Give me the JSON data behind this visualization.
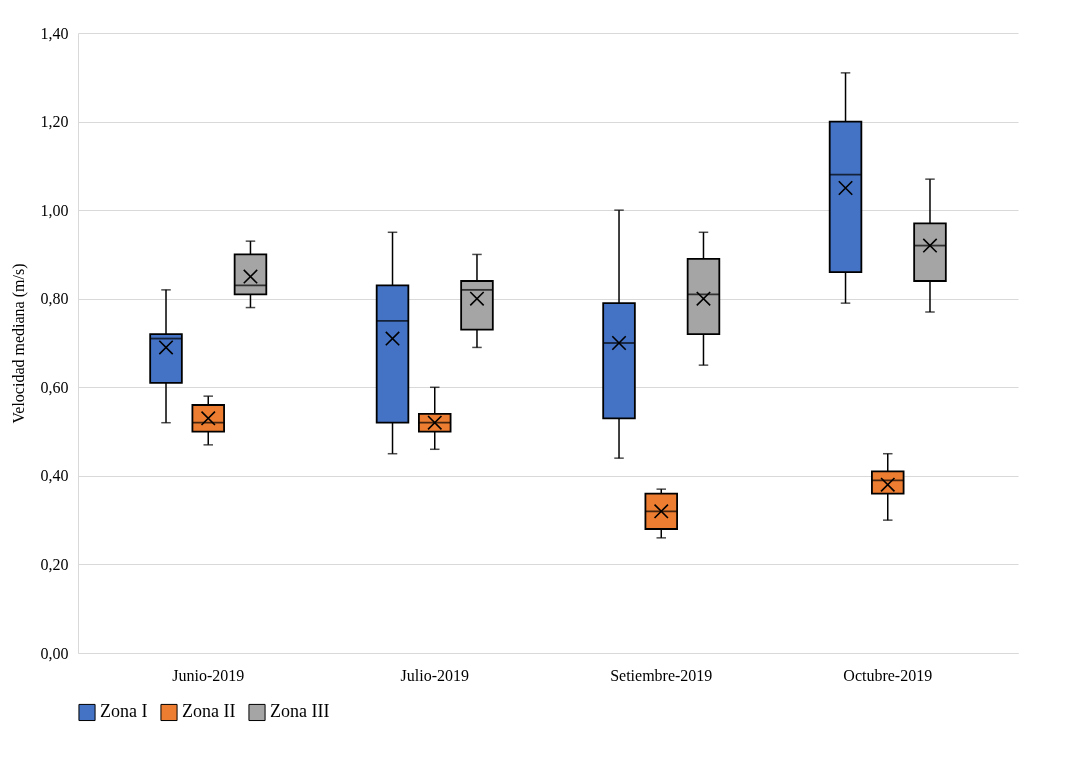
{
  "chart_data": {
    "type": "box",
    "ylabel": "Velocidad mediana (m/s)",
    "categories": [
      "Junio-2019",
      "Julio-2019",
      "Setiembre-2019",
      "Octubre-2019"
    ],
    "ylim": [
      0,
      1.4
    ],
    "yticks": [
      {
        "value": 0,
        "label": "0,00"
      },
      {
        "value": 0.2,
        "label": "0,20"
      },
      {
        "value": 0.4,
        "label": "0,40"
      },
      {
        "value": 0.6,
        "label": "0,60"
      },
      {
        "value": 0.8,
        "label": "0,80"
      },
      {
        "value": 1,
        "label": "1,00"
      },
      {
        "value": 1.2,
        "label": "1,20"
      },
      {
        "value": 1.4,
        "label": "1,40"
      }
    ],
    "grid": "y",
    "legend": "bottom",
    "series": [
      {
        "name": "Zona I",
        "color": "#4472c4",
        "boxes": [
          {
            "low": 0.52,
            "q1": 0.61,
            "median": 0.71,
            "q3": 0.72,
            "high": 0.82,
            "mean": 0.69
          },
          {
            "low": 0.45,
            "q1": 0.52,
            "median": 0.75,
            "q3": 0.83,
            "high": 0.95,
            "mean": 0.71
          },
          {
            "low": 0.44,
            "q1": 0.53,
            "median": 0.7,
            "q3": 0.79,
            "high": 1.0,
            "mean": 0.7
          },
          {
            "low": 0.79,
            "q1": 0.86,
            "median": 1.08,
            "q3": 1.2,
            "high": 1.31,
            "mean": 1.05
          }
        ]
      },
      {
        "name": "Zona II",
        "color": "#ed7d31",
        "boxes": [
          {
            "low": 0.47,
            "q1": 0.5,
            "median": 0.52,
            "q3": 0.56,
            "high": 0.58,
            "mean": 0.53
          },
          {
            "low": 0.46,
            "q1": 0.5,
            "median": 0.52,
            "q3": 0.54,
            "high": 0.6,
            "mean": 0.52
          },
          {
            "low": 0.26,
            "q1": 0.28,
            "median": 0.32,
            "q3": 0.36,
            "high": 0.37,
            "mean": 0.32
          },
          {
            "low": 0.3,
            "q1": 0.36,
            "median": 0.39,
            "q3": 0.41,
            "high": 0.45,
            "mean": 0.38
          }
        ]
      },
      {
        "name": "Zona III",
        "color": "#a5a5a5",
        "boxes": [
          {
            "low": 0.78,
            "q1": 0.81,
            "median": 0.83,
            "q3": 0.9,
            "high": 0.93,
            "mean": 0.85
          },
          {
            "low": 0.69,
            "q1": 0.73,
            "median": 0.82,
            "q3": 0.84,
            "high": 0.9,
            "mean": 0.8
          },
          {
            "low": 0.65,
            "q1": 0.72,
            "median": 0.81,
            "q3": 0.89,
            "high": 0.95,
            "mean": 0.8
          },
          {
            "low": 0.77,
            "q1": 0.84,
            "median": 0.92,
            "q3": 0.97,
            "high": 1.07,
            "mean": 0.92
          }
        ]
      }
    ]
  }
}
